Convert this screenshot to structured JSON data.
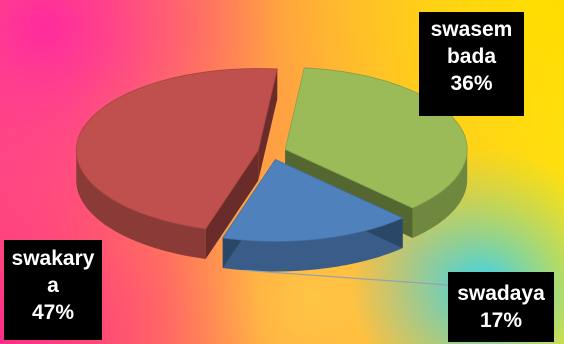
{
  "chart_data": {
    "type": "pie",
    "style": "3d-exploded",
    "slices": [
      {
        "label": "swasem bada",
        "value": 36,
        "percent_label": "36%",
        "color": "#9bbb59"
      },
      {
        "label": "swadaya",
        "value": 17,
        "percent_label": "17%",
        "color": "#4f81bd"
      },
      {
        "label": "swakarya",
        "value": 47,
        "percent_label": "47%",
        "color": "#c0504d"
      }
    ]
  },
  "labels": {
    "green": "swasem\nbada\n36%",
    "blue": "swadaya\n17%",
    "red": "swakary\na\n47%"
  }
}
